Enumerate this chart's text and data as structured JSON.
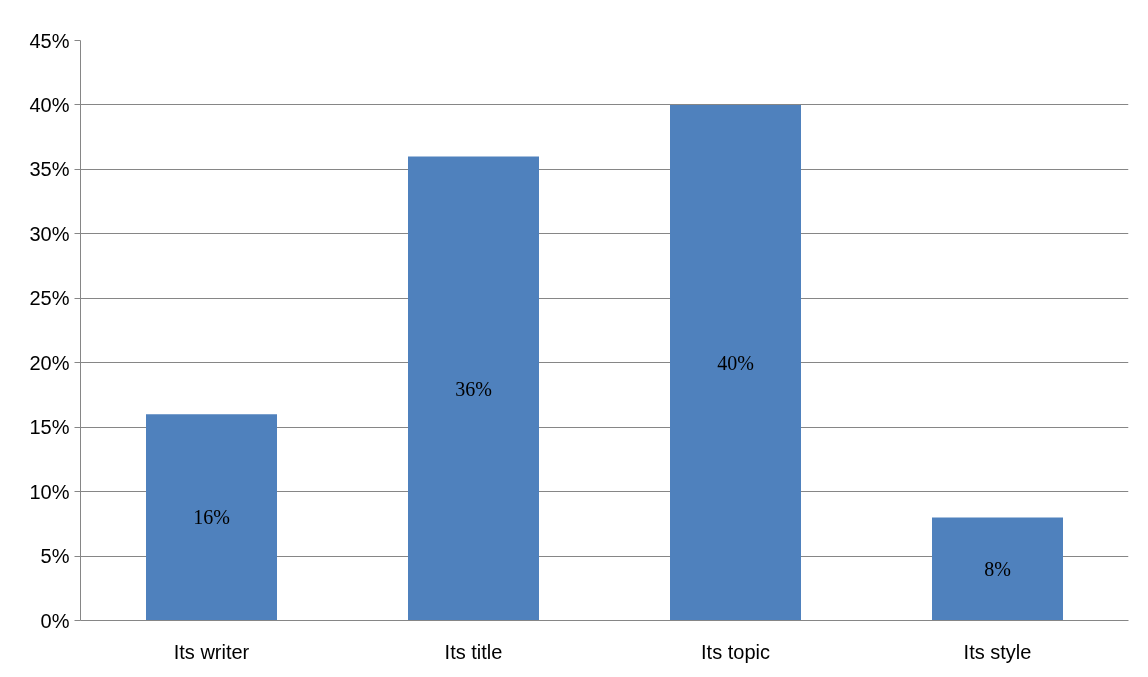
{
  "chart_data": {
    "type": "bar",
    "categories": [
      "Its writer",
      "Its title",
      "Its topic",
      "Its style"
    ],
    "values": [
      16,
      36,
      40,
      8
    ],
    "color": "#4f81bd",
    "value_labels": [
      "16%",
      "36%",
      "40%",
      "8%"
    ],
    "ylim": [
      0,
      45
    ],
    "yticks": [
      {
        "value": 0,
        "label": "0%"
      },
      {
        "value": 5,
        "label": "5%"
      },
      {
        "value": 10,
        "label": "10%"
      },
      {
        "value": 15,
        "label": "15%"
      },
      {
        "value": 20,
        "label": "20%"
      },
      {
        "value": 25,
        "label": "25%"
      },
      {
        "value": 30,
        "label": "30%"
      },
      {
        "value": 35,
        "label": "35%"
      },
      {
        "value": 40,
        "label": "40%"
      },
      {
        "value": 45,
        "label": "45%"
      }
    ],
    "grid": "y"
  }
}
